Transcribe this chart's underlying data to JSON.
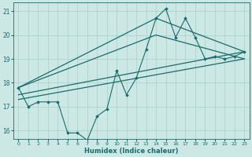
{
  "title": "",
  "xlabel": "Humidex (Indice chaleur)",
  "ylabel": "",
  "bg_color": "#cce8e4",
  "line_color": "#1a6b6b",
  "grid_color": "#aacfca",
  "xlim": [
    -0.5,
    23.5
  ],
  "ylim": [
    15.65,
    21.35
  ],
  "yticks": [
    16,
    17,
    18,
    19,
    20,
    21
  ],
  "xticks": [
    0,
    1,
    2,
    3,
    4,
    5,
    6,
    7,
    8,
    9,
    10,
    11,
    12,
    13,
    14,
    15,
    16,
    17,
    18,
    19,
    20,
    21,
    22,
    23
  ],
  "series": [
    {
      "x": [
        0,
        1,
        2,
        3,
        4,
        5,
        6,
        7,
        8,
        9,
        10,
        11,
        12,
        13,
        14,
        15,
        16,
        17,
        18,
        19,
        20,
        21,
        22,
        23
      ],
      "y": [
        17.8,
        17.0,
        17.2,
        17.2,
        17.2,
        15.9,
        15.9,
        15.6,
        16.6,
        16.9,
        18.5,
        17.5,
        18.2,
        19.4,
        20.7,
        21.1,
        19.9,
        20.7,
        19.9,
        19.0,
        19.1,
        19.0,
        19.1,
        19.3
      ],
      "marker": "D",
      "markersize": 1.8,
      "linewidth": 0.8
    },
    {
      "x": [
        0,
        14,
        23
      ],
      "y": [
        17.8,
        20.7,
        19.3
      ],
      "marker": null,
      "linewidth": 0.9
    },
    {
      "x": [
        0,
        14,
        23
      ],
      "y": [
        17.8,
        20.0,
        19.0
      ],
      "marker": null,
      "linewidth": 0.9
    },
    {
      "x": [
        0,
        23
      ],
      "y": [
        17.5,
        19.3
      ],
      "marker": null,
      "linewidth": 0.9
    },
    {
      "x": [
        0,
        23
      ],
      "y": [
        17.3,
        19.0
      ],
      "marker": null,
      "linewidth": 0.9
    }
  ]
}
